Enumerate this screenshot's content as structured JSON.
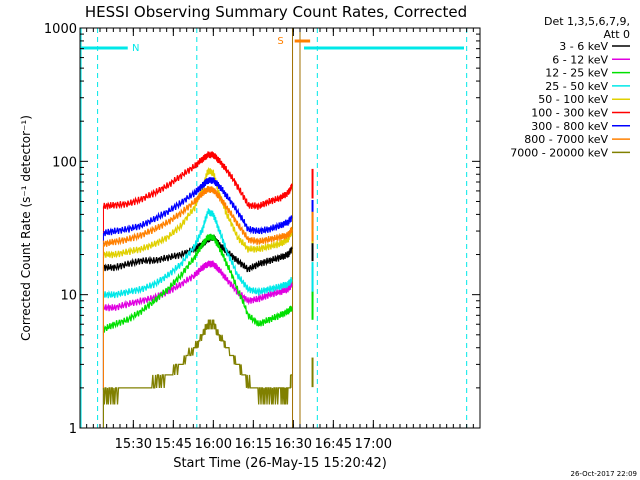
{
  "chart_data": {
    "type": "line",
    "title": "HESSI Observing Summary Count Rates, Corrected",
    "xlabel": "Start Time (26-May-15 15:20:42)",
    "ylabel": "Corrected Count Rate (s⁻¹ detector⁻¹)",
    "yscale": "log",
    "ylim": [
      1,
      1000
    ],
    "xlim_min": [
      -10,
      140
    ],
    "x_ticks": [
      {
        "value": 10,
        "label": "15:30"
      },
      {
        "value": 25,
        "label": "15:45"
      },
      {
        "value": 40,
        "label": "16:00"
      },
      {
        "value": 55,
        "label": "16:15"
      },
      {
        "value": 70,
        "label": "16:30"
      },
      {
        "value": 85,
        "label": "16:45"
      },
      {
        "value": 100,
        "label": "17:00"
      }
    ],
    "y_ticks": [
      {
        "value": 1,
        "label": "1"
      },
      {
        "value": 10,
        "label": "10"
      },
      {
        "value": 100,
        "label": "100"
      },
      {
        "value": 1000,
        "label": "1000"
      }
    ],
    "legend_header": [
      "Det 1,3,5,6,7,9,",
      "Att 0"
    ],
    "legend_position": "right",
    "timestamp": "26-Oct-2017 22:09",
    "flags": [
      {
        "label": "N",
        "color": "#00e8e8"
      },
      {
        "label": "S",
        "color": "#ff8000"
      }
    ],
    "series": [
      {
        "name": "3 - 6 keV",
        "color": "#000000",
        "x": [
          -1.2,
          3,
          8,
          13,
          18,
          23,
          28,
          33,
          36,
          38,
          40,
          42,
          45,
          49,
          53,
          57,
          61,
          65,
          68,
          69.5
        ],
        "y": [
          16,
          16,
          17,
          18,
          18,
          19,
          20,
          22,
          24,
          26,
          27,
          24,
          21,
          18,
          15.5,
          17,
          18,
          19,
          20,
          22
        ]
      },
      {
        "name": "6 - 12 keV",
        "color": "#e000e0",
        "x": [
          -1.2,
          3,
          8,
          13,
          18,
          23,
          28,
          33,
          36,
          38,
          40,
          42,
          45,
          49,
          53,
          57,
          61,
          65,
          68,
          69.5
        ],
        "y": [
          8,
          8,
          8.5,
          9,
          9.5,
          10.5,
          12,
          14,
          16,
          17,
          17,
          15.5,
          13,
          10.5,
          9,
          9.3,
          10,
          10.5,
          11,
          12
        ]
      },
      {
        "name": "12 - 25 keV",
        "color": "#00e000",
        "x": [
          -1.2,
          3,
          8,
          13,
          18,
          23,
          28,
          33,
          36,
          38,
          40,
          42,
          45,
          49,
          53,
          57,
          61,
          65,
          68,
          69.5
        ],
        "y": [
          5.5,
          6,
          6.5,
          7.5,
          9,
          11,
          14,
          19,
          24,
          27,
          27,
          23,
          17,
          11,
          7,
          6,
          6.5,
          7,
          7.5,
          8
        ]
      },
      {
        "name": "25 - 50 keV",
        "color": "#00e8e8",
        "x": [
          -1.2,
          3,
          8,
          13,
          18,
          23,
          28,
          33,
          36,
          38,
          40,
          42,
          45,
          49,
          53,
          57,
          61,
          65,
          68,
          69.5
        ],
        "y": [
          10,
          10,
          10.5,
          11,
          12,
          14,
          17,
          23,
          31,
          42,
          40,
          31,
          21,
          14,
          11,
          10.5,
          11,
          11.5,
          12,
          13
        ]
      },
      {
        "name": "50 - 100 keV",
        "color": "#e0d000",
        "x": [
          -1.2,
          3,
          8,
          13,
          18,
          23,
          28,
          33,
          36,
          38,
          40,
          42,
          45,
          49,
          53,
          57,
          61,
          65,
          68,
          69.5
        ],
        "y": [
          20,
          20,
          21,
          22,
          24,
          27,
          33,
          45,
          62,
          85,
          82,
          58,
          40,
          27,
          22,
          22,
          23,
          24,
          26,
          30
        ]
      },
      {
        "name": "100 - 300 keV",
        "color": "#ff0000",
        "x": [
          -1.2,
          3,
          8,
          13,
          18,
          23,
          28,
          33,
          36,
          38,
          40,
          42,
          45,
          49,
          53,
          57,
          61,
          65,
          68,
          69.5
        ],
        "y": [
          46,
          47,
          48,
          52,
          58,
          66,
          78,
          92,
          104,
          112,
          112,
          102,
          86,
          65,
          47,
          46,
          50,
          53,
          58,
          65
        ]
      },
      {
        "name": "300 - 800 keV",
        "color": "#0000ff",
        "x": [
          -1.2,
          3,
          8,
          13,
          18,
          23,
          28,
          33,
          36,
          38,
          40,
          42,
          45,
          49,
          53,
          57,
          61,
          65,
          68,
          69.5
        ],
        "y": [
          29,
          30,
          31,
          33,
          37,
          42,
          49,
          58,
          66,
          72,
          72,
          66,
          55,
          42,
          31,
          30,
          31,
          33,
          35,
          38
        ]
      },
      {
        "name": "800 - 7000 keV",
        "color": "#ff8000",
        "x": [
          -1.2,
          3,
          8,
          13,
          18,
          23,
          28,
          33,
          36,
          38,
          40,
          42,
          45,
          49,
          53,
          57,
          61,
          65,
          68,
          69.5
        ],
        "y": [
          24,
          25,
          26,
          28,
          31,
          35,
          41,
          50,
          58,
          62,
          61,
          55,
          45,
          34,
          26,
          25,
          26,
          27,
          28,
          31
        ]
      },
      {
        "name": "7000 - 20000 keV",
        "color": "#808000",
        "x": [
          -1.2,
          3,
          8,
          13,
          18,
          23,
          28,
          33,
          36,
          38,
          40,
          42,
          45,
          49,
          53,
          57,
          61,
          65,
          68,
          69.5
        ],
        "y": [
          1.8,
          1.8,
          2,
          2,
          2.2,
          2.4,
          3,
          4,
          5,
          6,
          6,
          5,
          4,
          3,
          2.2,
          1.8,
          1.8,
          1.8,
          1.8,
          2.5
        ]
      }
    ]
  }
}
